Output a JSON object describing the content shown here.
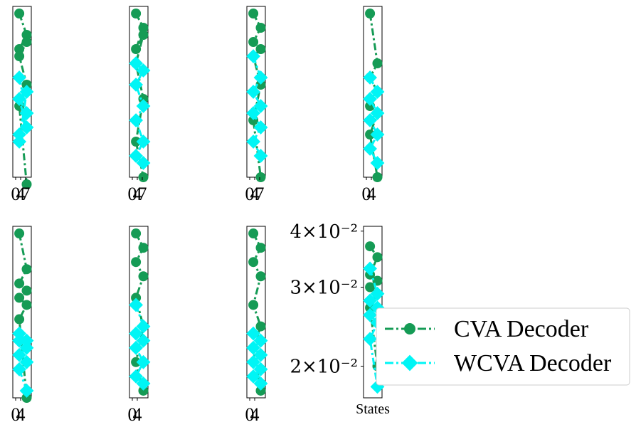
{
  "colors": {
    "cva": "#159b55",
    "wcva": "#00f5f5"
  },
  "chart_data": {
    "type": "line",
    "layout": "grid 2 rows x 4 columns, 7 data panels + 1 panel with log-scale y axis",
    "series_names": [
      "CVA Decoder",
      "WCVA Decoder"
    ],
    "legend_placement": "right-center",
    "panels": [
      {
        "xticks": [
          "0",
          "4",
          "7"
        ],
        "series": [
          {
            "name": "CVA Decoder",
            "x": [
              0,
              1,
              2,
              3,
              4,
              5,
              6,
              7
            ],
            "y": [
              0.04,
              0.037,
              0.035,
              0.036,
              0.034,
              0.03,
              0.027,
              0.016
            ]
          },
          {
            "name": "WCVA Decoder",
            "x": [
              0,
              1,
              2,
              3,
              4,
              5,
              6,
              7
            ],
            "y": [
              0.031,
              0.026,
              0.028,
              0.024,
              0.023,
              0.026,
              0.022,
              0.029
            ]
          }
        ]
      },
      {
        "xticks": [
          "0",
          "4",
          "7"
        ],
        "series": [
          {
            "name": "CVA Decoder",
            "x": [
              0,
              1,
              2,
              3,
              4,
              5,
              6,
              7
            ],
            "y": [
              0.04,
              0.038,
              0.035,
              0.037,
              0.033,
              0.028,
              0.022,
              0.017
            ]
          },
          {
            "name": "WCVA Decoder",
            "x": [
              0,
              1,
              2,
              3,
              4,
              5,
              6,
              7
            ],
            "y": [
              0.033,
              0.032,
              0.03,
              0.027,
              0.025,
              0.022,
              0.02,
              0.019
            ]
          }
        ]
      },
      {
        "xticks": [
          "0",
          "4",
          "7"
        ],
        "series": [
          {
            "name": "CVA Decoder",
            "x": [
              0,
              1,
              2,
              3,
              4,
              5,
              6,
              7
            ],
            "y": [
              0.04,
              0.038,
              0.036,
              0.035,
              0.034,
              0.03,
              0.025,
              0.017
            ]
          },
          {
            "name": "WCVA Decoder",
            "x": [
              0,
              1,
              2,
              3,
              4,
              5,
              6,
              7
            ],
            "y": [
              0.034,
              0.031,
              0.029,
              0.027,
              0.026,
              0.024,
              0.022,
              0.02
            ]
          }
        ]
      },
      {
        "xticks": [
          "0",
          "4"
        ],
        "series": [
          {
            "name": "CVA Decoder",
            "x": [
              0,
              1,
              2,
              3,
              4,
              5,
              6,
              7
            ],
            "y": [
              0.04,
              0.033,
              0.031,
              0.029,
              0.027,
              0.026,
              0.023,
              0.017
            ]
          },
          {
            "name": "WCVA Decoder",
            "x": [
              0,
              1,
              2,
              3,
              4,
              5,
              6,
              7
            ],
            "y": [
              0.031,
              0.029,
              0.028,
              0.026,
              0.025,
              0.023,
              0.021,
              0.019
            ]
          }
        ]
      },
      {
        "xticks": [
          "0",
          "4"
        ],
        "series": [
          {
            "name": "CVA Decoder",
            "x": [
              0,
              1,
              2,
              3,
              4,
              5,
              6,
              7
            ],
            "y": [
              0.04,
              0.035,
              0.033,
              0.032,
              0.031,
              0.03,
              0.028,
              0.017
            ]
          },
          {
            "name": "WCVA Decoder",
            "x": [
              0,
              1,
              2,
              3,
              4,
              5,
              6,
              7
            ],
            "y": [
              0.026,
              0.025,
              0.025,
              0.024,
              0.023,
              0.022,
              0.021,
              0.018
            ]
          }
        ]
      },
      {
        "xticks": [
          "0",
          "4"
        ],
        "series": [
          {
            "name": "CVA Decoder",
            "x": [
              0,
              1,
              2,
              3,
              4,
              5,
              6,
              7
            ],
            "y": [
              0.04,
              0.038,
              0.036,
              0.034,
              0.031,
              0.027,
              0.022,
              0.018
            ]
          },
          {
            "name": "WCVA Decoder",
            "x": [
              0,
              1,
              2,
              3,
              4,
              5,
              6,
              7
            ],
            "y": [
              0.03,
              0.027,
              0.026,
              0.025,
              0.024,
              0.022,
              0.02,
              0.019
            ]
          }
        ]
      },
      {
        "xticks": [
          "0",
          "4"
        ],
        "series": [
          {
            "name": "CVA Decoder",
            "x": [
              0,
              1,
              2,
              3,
              4,
              5,
              6,
              7
            ],
            "y": [
              0.04,
              0.038,
              0.036,
              0.034,
              0.03,
              0.027,
              0.024,
              0.018
            ]
          },
          {
            "name": "WCVA Decoder",
            "x": [
              0,
              1,
              2,
              3,
              4,
              5,
              6,
              7
            ],
            "y": [
              0.026,
              0.025,
              0.024,
              0.023,
              0.022,
              0.021,
              0.02,
              0.019
            ]
          }
        ]
      },
      {
        "xticks": [],
        "xlabel": "States",
        "yscale": "log",
        "yticks": [
          {
            "value": 0.04,
            "label": "4×10⁻²"
          },
          {
            "value": 0.03,
            "label": "3×10⁻²"
          },
          {
            "value": 0.02,
            "label": "2×10⁻²"
          }
        ],
        "series": [
          {
            "name": "CVA Decoder",
            "x": [
              0,
              1,
              2,
              3,
              4,
              5,
              6,
              7
            ],
            "y": [
              0.037,
              0.035,
              0.032,
              0.031,
              0.03,
              0.029,
              0.027,
              0.02
            ]
          },
          {
            "name": "WCVA Decoder",
            "x": [
              0,
              1,
              2,
              3,
              4,
              5,
              6,
              7
            ],
            "y": [
              0.033,
              0.029,
              0.028,
              0.027,
              0.026,
              0.025,
              0.023,
              0.018
            ]
          }
        ]
      }
    ],
    "ylim": [
      0.017,
      0.041
    ]
  }
}
